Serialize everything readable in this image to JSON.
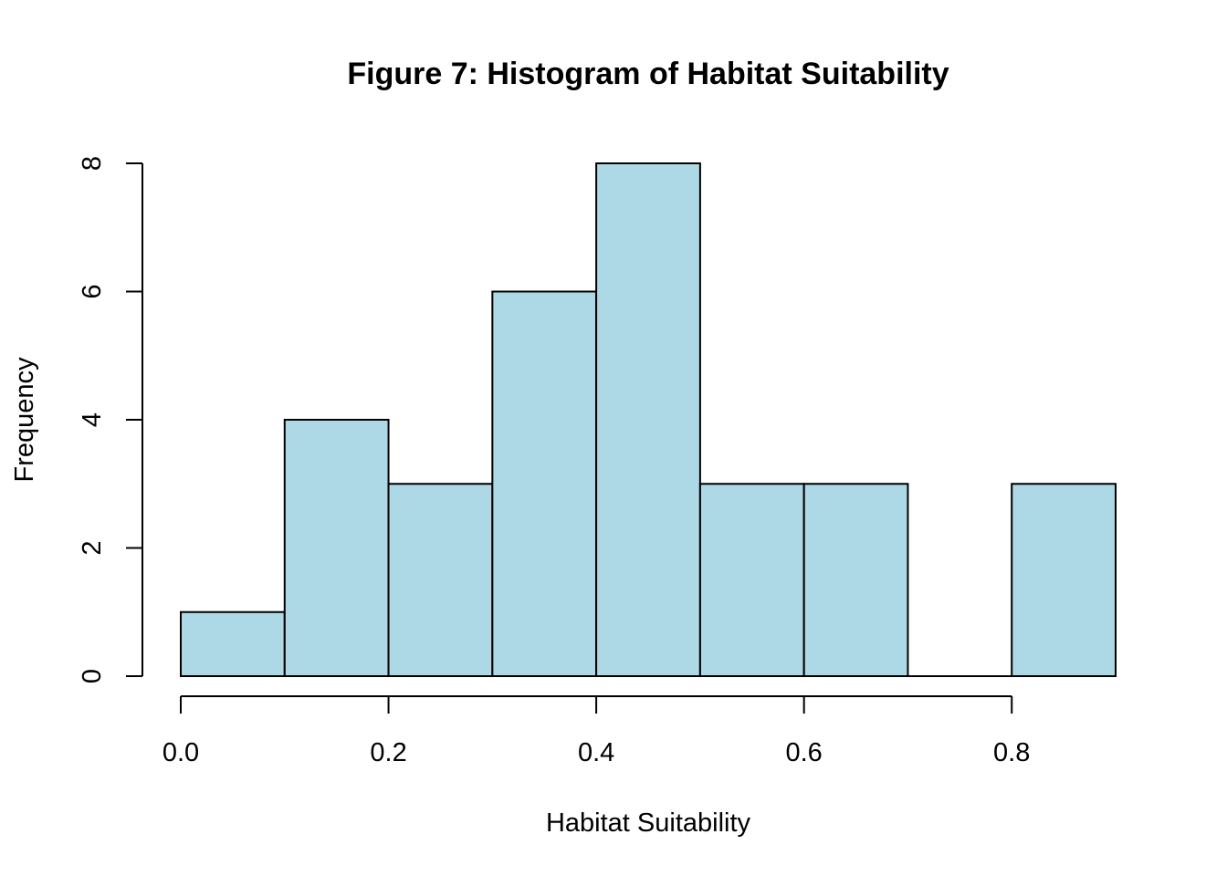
{
  "chart_data": {
    "type": "bar",
    "title": "Figure 7: Histogram of Habitat Suitability",
    "xlabel": "Habitat Suitability",
    "ylabel": "Frequency",
    "bins": [
      {
        "from": 0.0,
        "to": 0.1,
        "count": 1
      },
      {
        "from": 0.1,
        "to": 0.2,
        "count": 4
      },
      {
        "from": 0.2,
        "to": 0.3,
        "count": 3
      },
      {
        "from": 0.3,
        "to": 0.4,
        "count": 6
      },
      {
        "from": 0.4,
        "to": 0.5,
        "count": 8
      },
      {
        "from": 0.5,
        "to": 0.6,
        "count": 3
      },
      {
        "from": 0.6,
        "to": 0.7,
        "count": 3
      },
      {
        "from": 0.7,
        "to": 0.8,
        "count": 0
      },
      {
        "from": 0.8,
        "to": 0.9,
        "count": 3
      }
    ],
    "xlim": [
      0.0,
      0.9
    ],
    "ylim": [
      0,
      8
    ],
    "xticks": [
      "0.0",
      "0.2",
      "0.4",
      "0.6",
      "0.8"
    ],
    "yticks": [
      "0",
      "2",
      "4",
      "6",
      "8"
    ],
    "bar_color": "#add8e6",
    "grid": false
  }
}
